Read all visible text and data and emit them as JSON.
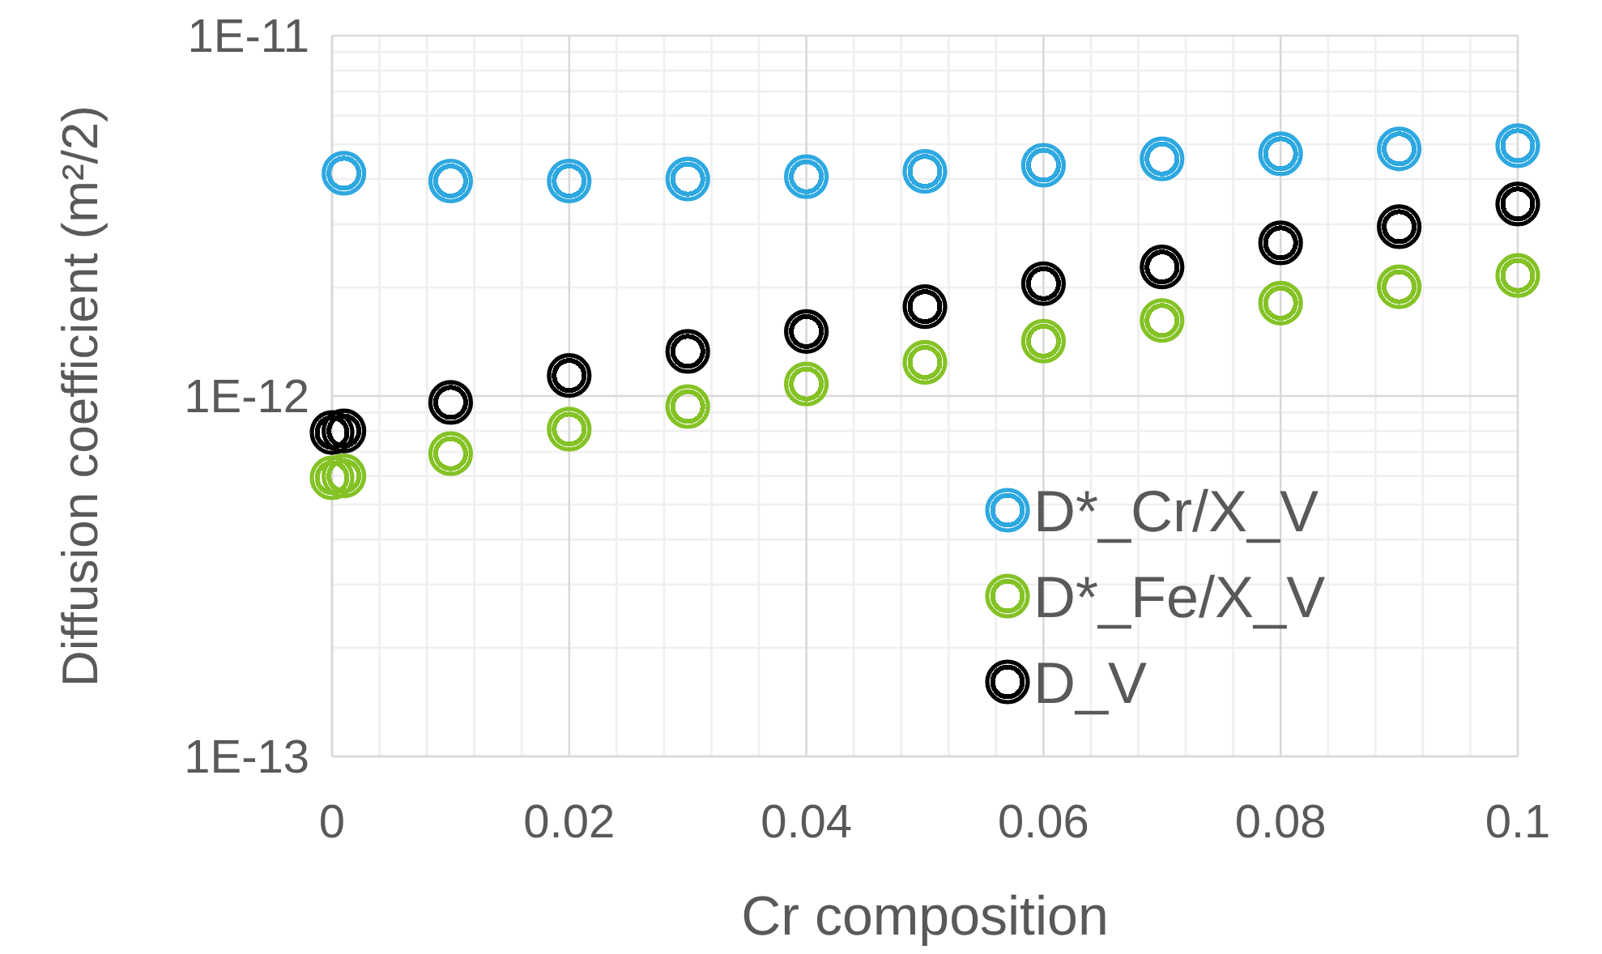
{
  "chart_data": {
    "type": "scatter",
    "xlabel": "Cr composition",
    "ylabel": "Diffusion coefficient (m²/2)",
    "xlim": [
      0,
      0.1
    ],
    "xticks": [
      0,
      0.02,
      0.04,
      0.06,
      0.08,
      0.1
    ],
    "ylim": [
      1e-13,
      1e-11
    ],
    "yticks": [
      {
        "value": 1e-13,
        "label": "1E-13"
      },
      {
        "value": 1e-12,
        "label": "1E-12"
      },
      {
        "value": 1e-11,
        "label": "1E-11"
      }
    ],
    "log": "y",
    "grid": true,
    "legend": "bottom right",
    "marker": "circle",
    "series": [
      {
        "name": "D*_Cr/X_V",
        "color": "#2ea8e0",
        "x": [
          0.001,
          0.01,
          0.02,
          0.03,
          0.04,
          0.05,
          0.06,
          0.07,
          0.08,
          0.09,
          0.1
        ],
        "values": [
          4.15e-12,
          3.95e-12,
          3.95e-12,
          4e-12,
          4.06e-12,
          4.2e-12,
          4.37e-12,
          4.55e-12,
          4.7e-12,
          4.85e-12,
          4.95e-12
        ]
      },
      {
        "name": "D*_Fe/X_V",
        "color": "#84c225",
        "x": [
          0,
          0.001,
          0.01,
          0.02,
          0.03,
          0.04,
          0.05,
          0.06,
          0.07,
          0.08,
          0.09,
          0.1
        ],
        "values": [
          5.93e-13,
          6e-13,
          6.92e-13,
          8.09e-13,
          9.35e-13,
          1.08e-12,
          1.24e-12,
          1.42e-12,
          1.62e-12,
          1.81e-12,
          2.01e-12,
          2.16e-12
        ]
      },
      {
        "name": "D_V",
        "color": "#000000",
        "x": [
          0,
          0.001,
          0.01,
          0.02,
          0.03,
          0.04,
          0.05,
          0.06,
          0.07,
          0.08,
          0.09,
          0.1
        ],
        "values": [
          7.92e-13,
          8e-13,
          9.6e-13,
          1.14e-12,
          1.33e-12,
          1.51e-12,
          1.77e-12,
          2.05e-12,
          2.28e-12,
          2.66e-12,
          2.95e-12,
          3.41e-12
        ]
      }
    ]
  }
}
